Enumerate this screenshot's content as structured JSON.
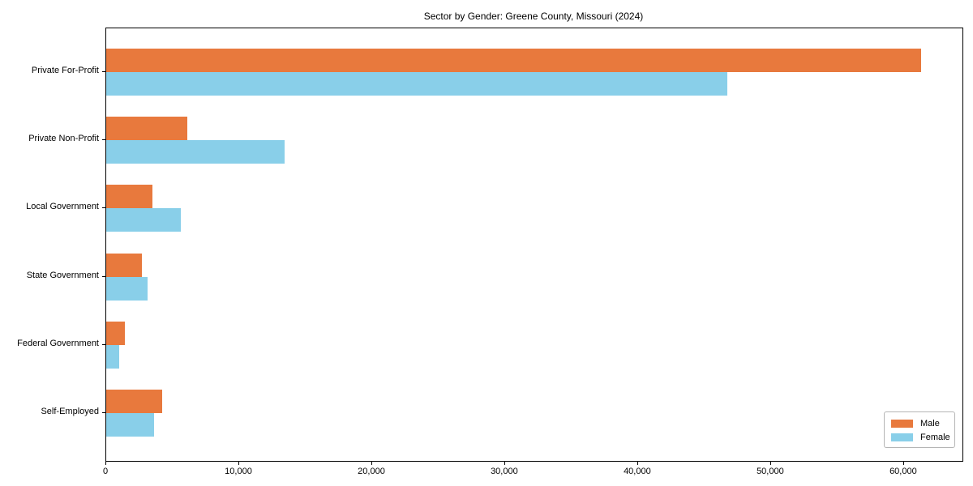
{
  "chart_data": {
    "type": "bar",
    "orientation": "horizontal",
    "title": "Sector by Gender: Greene County, Missouri (2024)",
    "xlabel": "",
    "ylabel": "",
    "categories": [
      "Private For-Profit",
      "Private Non-Profit",
      "Local Government",
      "State Government",
      "Federal Government",
      "Self-Employed"
    ],
    "series": [
      {
        "name": "Male",
        "color": "#e8793d",
        "values": [
          61300,
          6100,
          3500,
          2700,
          1400,
          4200
        ]
      },
      {
        "name": "Female",
        "color": "#89cfe9",
        "values": [
          46700,
          13400,
          5600,
          3100,
          1000,
          3600
        ]
      }
    ],
    "xlim": [
      0,
      64400
    ],
    "x_ticks": [
      0,
      10000,
      20000,
      30000,
      40000,
      50000,
      60000
    ],
    "x_tick_labels": [
      "0",
      "10,000",
      "20,000",
      "30,000",
      "40,000",
      "50,000",
      "60,000"
    ],
    "grid": false,
    "legend_position": "lower right",
    "plot_border_color": "#000000",
    "background_color": "#ffffff"
  }
}
